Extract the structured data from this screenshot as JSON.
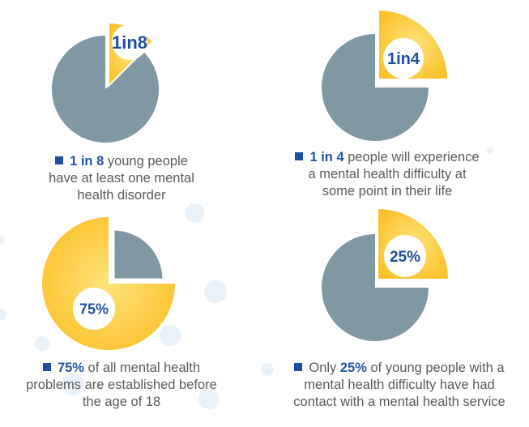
{
  "colors": {
    "highlight": "#fcc22c",
    "highlight_light": "#fde47a",
    "remainder": "#7f98a3",
    "label_text": "#1e4f9e",
    "bullet": "#1d4fa0",
    "caption_text": "#5a5a5a",
    "bubble": "#e9f1f9"
  },
  "chart_data": [
    {
      "type": "pie",
      "title": "1 in 8",
      "slices": [
        {
          "name": "highlighted",
          "value": 12.5,
          "exploded": true
        },
        {
          "name": "remainder",
          "value": 87.5
        }
      ],
      "label": "1in8",
      "caption": {
        "highlight": "1 in 8",
        "rest": [
          " young people",
          "have at least one mental",
          "health disorder"
        ]
      }
    },
    {
      "type": "pie",
      "title": "1 in 4",
      "slices": [
        {
          "name": "highlighted",
          "value": 25,
          "exploded": true
        },
        {
          "name": "remainder",
          "value": 75
        }
      ],
      "label": "1in4",
      "caption": {
        "highlight": "1 in 4",
        "rest": [
          " people will experience",
          "a mental health difficulty at",
          "some point in their life"
        ]
      }
    },
    {
      "type": "pie",
      "title": "75%",
      "slices": [
        {
          "name": "highlighted",
          "value": 75,
          "exploded": true
        },
        {
          "name": "remainder",
          "value": 25
        }
      ],
      "label": "75%",
      "caption": {
        "highlight": "75%",
        "rest": [
          " of all mental health",
          "problems are established before",
          "the age of 18"
        ]
      }
    },
    {
      "type": "pie",
      "title": "25%",
      "slices": [
        {
          "name": "highlighted",
          "value": 25,
          "exploded": true
        },
        {
          "name": "remainder",
          "value": 75
        }
      ],
      "label": "25%",
      "caption": {
        "prefix": "Only ",
        "highlight": "25%",
        "rest": [
          " of young people with a",
          "mental health difficulty have had",
          "contact with a mental health service"
        ]
      }
    }
  ]
}
